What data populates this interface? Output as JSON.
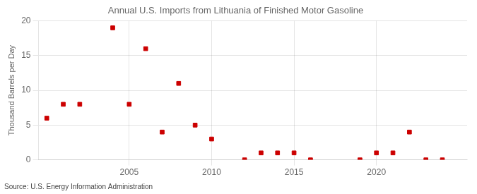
{
  "chart_data": {
    "type": "scatter",
    "title": "Annual U.S. Imports from Lithuania of Finished Motor Gasoline",
    "ylabel": "Thousand Barrels per Day",
    "source": "Source: U.S. Energy Information Administration",
    "x": [
      2000,
      2001,
      2002,
      2004,
      2005,
      2006,
      2007,
      2008,
      2009,
      2010,
      2012,
      2013,
      2014,
      2015,
      2016,
      2019,
      2020,
      2021,
      2022,
      2023,
      2024
    ],
    "values": [
      6,
      8,
      8,
      19,
      8,
      16,
      4,
      11,
      5,
      3,
      0,
      1,
      1,
      1,
      0,
      0,
      1,
      1,
      4,
      0,
      0
    ],
    "color": "#cc0000",
    "marker": "square",
    "xlim": [
      1999.5,
      2025.5
    ],
    "xticks": [
      2005,
      2010,
      2015,
      2020
    ],
    "ylim": [
      0,
      20
    ],
    "yticks": [
      0,
      5,
      10,
      15,
      20
    ],
    "grid": true
  }
}
